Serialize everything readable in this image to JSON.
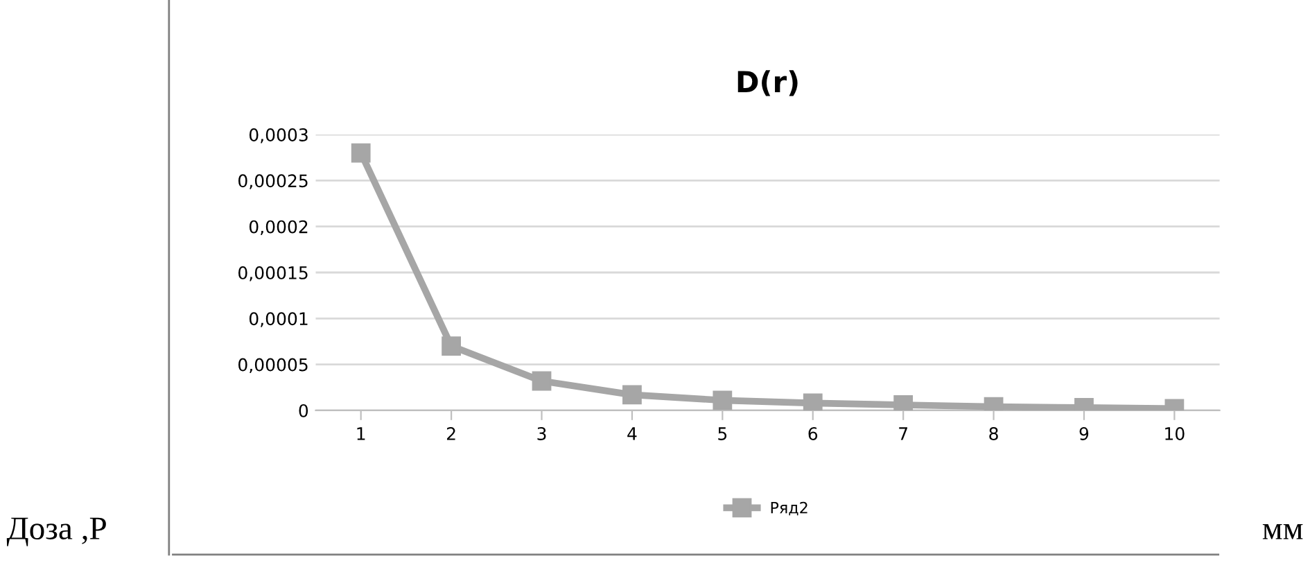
{
  "chart_data": {
    "type": "line",
    "title": "D(r)",
    "categories": [
      "1",
      "2",
      "3",
      "4",
      "5",
      "6",
      "7",
      "8",
      "9",
      "10"
    ],
    "series": [
      {
        "name": "Ряд2",
        "color": "#a6a6a6",
        "values": [
          0.00028,
          7e-05,
          3.2e-05,
          1.7e-05,
          1.1e-05,
          8e-06,
          6e-06,
          4e-06,
          3e-06,
          2e-06
        ]
      }
    ],
    "ylim": [
      0,
      0.0003
    ],
    "yticks": [
      0,
      {
        "value": 5e-05,
        "label": "0,00005"
      },
      {
        "value": 0.0001,
        "label": "0,0001"
      },
      {
        "value": 0.00015,
        "label": "0,00015"
      },
      {
        "value": 0.0002,
        "label": "0,0002"
      },
      {
        "value": 0.00025,
        "label": "0,00025"
      },
      {
        "value": 0.0003,
        "label": "0,0003"
      }
    ],
    "grid": "y",
    "legend": "bottom",
    "marker": "square",
    "line_style": "solid",
    "annotations": [
      "Доза ,Р",
      "мм"
    ]
  }
}
